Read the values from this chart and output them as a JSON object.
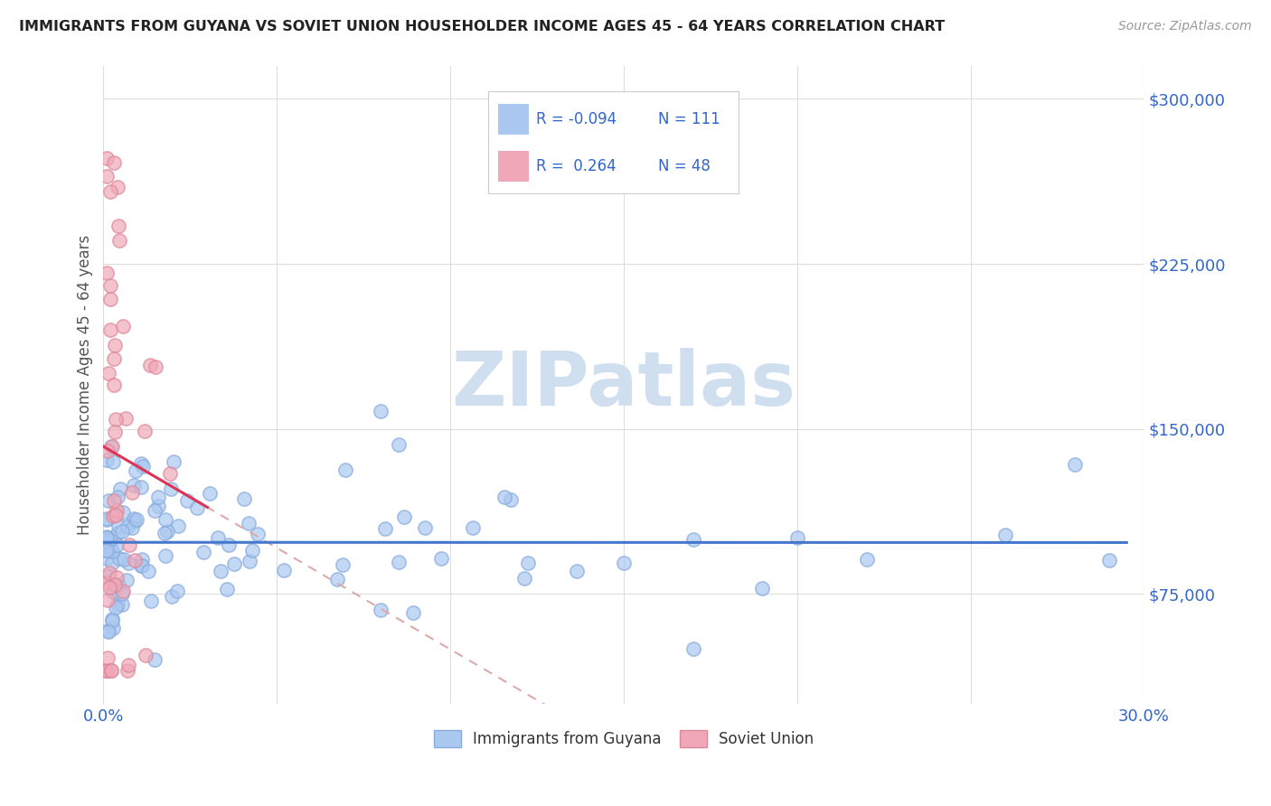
{
  "title": "IMMIGRANTS FROM GUYANA VS SOVIET UNION HOUSEHOLDER INCOME AGES 45 - 64 YEARS CORRELATION CHART",
  "source": "Source: ZipAtlas.com",
  "ylabel": "Householder Income Ages 45 - 64 years",
  "xlim": [
    0.0,
    0.3
  ],
  "ylim": [
    25000,
    315000
  ],
  "xtick_positions": [
    0.0,
    0.05,
    0.1,
    0.15,
    0.2,
    0.25,
    0.3
  ],
  "xticklabels": [
    "0.0%",
    "",
    "",
    "",
    "",
    "",
    "30.0%"
  ],
  "ytick_positions": [
    75000,
    150000,
    225000,
    300000
  ],
  "ytick_labels": [
    "$75,000",
    "$150,000",
    "$225,000",
    "$300,000"
  ],
  "guyana_color": "#aac8f0",
  "soviet_color": "#f0a8b8",
  "guyana_edge_color": "#88aadd",
  "soviet_edge_color": "#dd8899",
  "guyana_line_color": "#4477cc",
  "soviet_line_color": "#dd3355",
  "soviet_dashed_color": "#ddaaaa",
  "watermark_color": "#d0dff0",
  "background_color": "#ffffff",
  "grid_color": "#dddddd",
  "title_color": "#222222",
  "axis_label_color": "#555555",
  "tick_label_color": "#3366cc",
  "legend_label_color": "#3366cc",
  "legend_r_guyana": "-0.094",
  "legend_n_guyana": "111",
  "legend_r_soviet": "0.264",
  "legend_n_soviet": "48"
}
